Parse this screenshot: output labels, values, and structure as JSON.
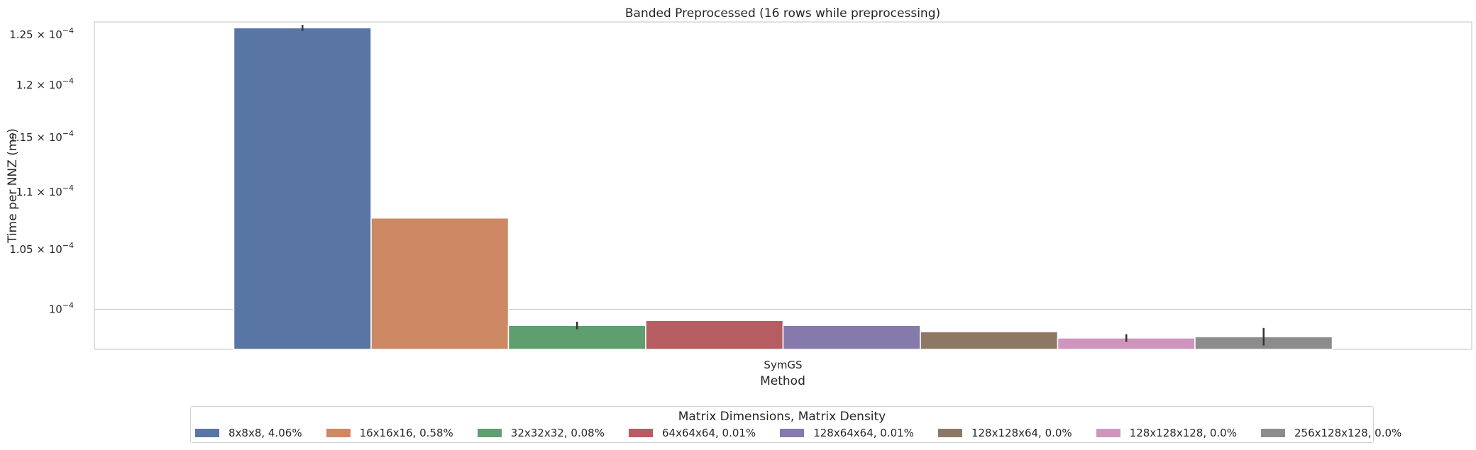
{
  "chart_data": {
    "type": "bar",
    "title": "Banded Preprocessed (16 rows while preprocessing)",
    "xlabel": "Method",
    "ylabel": "Time per NNZ (ms)",
    "yscale": "log",
    "ylim": [
      9.68e-05,
      0.0001263
    ],
    "yticks": [
      {
        "value": 0.0001,
        "mantissa": "",
        "exponent": "−4"
      },
      {
        "value": 0.000105,
        "mantissa": "1.05",
        "exponent": "−4"
      },
      {
        "value": 0.00011,
        "mantissa": "1.1",
        "exponent": "−4"
      },
      {
        "value": 0.000115,
        "mantissa": "1.15",
        "exponent": "−4"
      },
      {
        "value": 0.00012,
        "mantissa": "1.2",
        "exponent": "−4"
      },
      {
        "value": 0.000125,
        "mantissa": "1.25",
        "exponent": "−4"
      }
    ],
    "grid": true,
    "legend_position": "bottom-center",
    "legend_title": "Matrix Dimensions, Matrix Density",
    "categories": [
      "SymGS"
    ],
    "series": [
      {
        "name": "8x8x8, 4.06%",
        "color": "#5875a4",
        "values": [
          0.0001257
        ],
        "err": [
          3e-07
        ]
      },
      {
        "name": "16x16x16, 0.58%",
        "color": "#cc8963",
        "values": [
          0.0001077
        ],
        "err": [
          0
        ]
      },
      {
        "name": "32x32x32, 0.08%",
        "color": "#5f9e6e",
        "values": [
          9.87e-05
        ],
        "err": [
          3e-07
        ]
      },
      {
        "name": "64x64x64, 0.01%",
        "color": "#b55d60",
        "values": [
          9.91e-05
        ],
        "err": [
          0
        ]
      },
      {
        "name": "128x64x64, 0.01%",
        "color": "#857aab",
        "values": [
          9.87e-05
        ],
        "err": [
          0
        ]
      },
      {
        "name": "128x128x64, 0.0%",
        "color": "#8d7866",
        "values": [
          9.82e-05
        ],
        "err": [
          0
        ]
      },
      {
        "name": "128x128x128, 0.0%",
        "color": "#d095bf",
        "values": [
          9.77e-05
        ],
        "err": [
          3e-07
        ]
      },
      {
        "name": "256x128x128, 0.0%",
        "color": "#8c8c8c",
        "values": [
          9.78e-05
        ],
        "err": [
          7e-07
        ]
      }
    ]
  }
}
